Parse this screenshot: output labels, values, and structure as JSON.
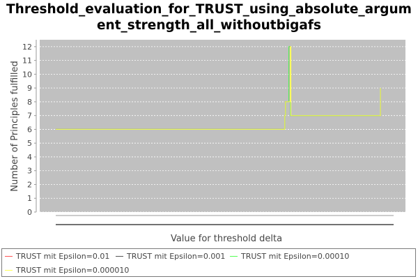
{
  "chart_data": {
    "type": "line",
    "title": "Threshold_evaluation_for_TRUST_using_absolute_argum ent_strength_all_withoutbigafs",
    "title_lines": [
      "Threshold_evaluation_for_TRUST_using_absolute_argum",
      "ent_strength_all_withoutbigafs"
    ],
    "xlabel": "Value for threshold delta",
    "ylabel": "Number of Principles fulfilled",
    "ylim": [
      0,
      12.5
    ],
    "yticks": [
      0,
      1,
      2,
      3,
      4,
      5,
      6,
      7,
      8,
      9,
      10,
      11,
      12
    ],
    "xlim": [
      0,
      1
    ],
    "grid": true,
    "legend_position": "bottom",
    "plot_background": "#c0c0c0",
    "series": [
      {
        "name": "TRUST mit Epsilon=0.01",
        "color": "#ff5555",
        "points": [
          [
            0.0,
            6
          ],
          [
            0.678,
            6
          ],
          [
            0.678,
            7
          ],
          [
            0.68,
            7
          ],
          [
            0.68,
            8
          ],
          [
            0.69,
            8
          ],
          [
            0.69,
            12
          ],
          [
            0.695,
            12
          ],
          [
            0.695,
            7
          ],
          [
            0.961,
            7
          ],
          [
            0.961,
            9
          ]
        ]
      },
      {
        "name": "TRUST mit Epsilon=0.001",
        "color": "#555555",
        "points": [
          [
            0.0,
            6
          ],
          [
            0.678,
            6
          ],
          [
            0.678,
            7
          ],
          [
            0.68,
            7
          ],
          [
            0.68,
            8
          ],
          [
            0.69,
            8
          ],
          [
            0.69,
            12
          ],
          [
            0.695,
            12
          ],
          [
            0.695,
            7
          ],
          [
            0.961,
            7
          ],
          [
            0.961,
            9
          ]
        ]
      },
      {
        "name": "TRUST mit Epsilon=0.00010",
        "color": "#55ff55",
        "points": [
          [
            0.0,
            6
          ],
          [
            0.678,
            6
          ],
          [
            0.678,
            7
          ],
          [
            0.68,
            7
          ],
          [
            0.68,
            8
          ],
          [
            0.69,
            8
          ],
          [
            0.69,
            12
          ],
          [
            0.695,
            12
          ],
          [
            0.695,
            7
          ],
          [
            0.961,
            7
          ],
          [
            0.961,
            9
          ]
        ]
      },
      {
        "name": "TRUST mit Epsilon=0.000010",
        "color": "#ffff55",
        "points": [
          [
            0.0,
            6
          ],
          [
            0.678,
            6
          ],
          [
            0.678,
            7
          ],
          [
            0.68,
            7
          ],
          [
            0.68,
            8
          ],
          [
            0.694,
            8
          ],
          [
            0.694,
            12
          ],
          [
            0.696,
            12
          ],
          [
            0.696,
            7
          ],
          [
            0.961,
            7
          ],
          [
            0.961,
            9
          ]
        ]
      }
    ]
  }
}
